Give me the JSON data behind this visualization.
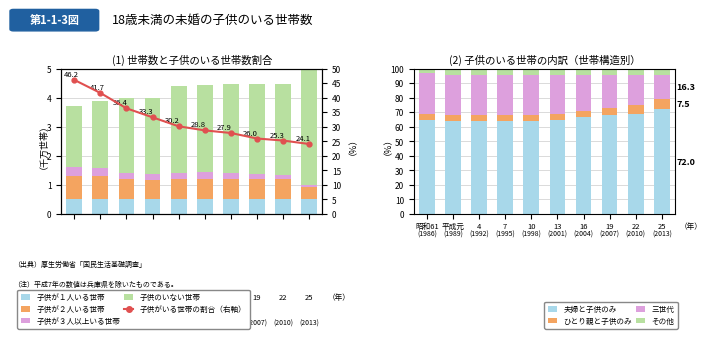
{
  "title_box": "第1-1-3図",
  "title_main": "18歳未満の未婚の子供のいる世帯数",
  "subtitle1": "(1) 世帯数と子供のいる世帯数割合",
  "subtitle2": "(2) 子供のいる世帯の内訳（世帯構造別）",
  "ylabel1": "（千万世帯）",
  "ylabel2": "（%）",
  "ylabel2b": "（%）",
  "xlabel_note": "（年）",
  "source": "（出典）厚生労働省「国民生活基礎調査」",
  "note": "（注）平成7年の数値は兵庫県を除いたものである。",
  "years_label": [
    "昭和61",
    "平成元",
    "4",
    "7",
    "10",
    "13",
    "16",
    "19",
    "22",
    "25"
  ],
  "years_sub": [
    "(1986)",
    "(1989)",
    "(1992)",
    "(1995)",
    "(1998)",
    "(2001)",
    "(2004)",
    "(2007)",
    "(2010)",
    "(2013)"
  ],
  "bar1_child1": [
    0.52,
    0.52,
    0.5,
    0.5,
    0.5,
    0.52,
    0.52,
    0.52,
    0.52,
    0.52
  ],
  "bar1_child2": [
    0.8,
    0.78,
    0.7,
    0.68,
    0.7,
    0.7,
    0.7,
    0.68,
    0.68,
    0.4
  ],
  "bar1_child3": [
    0.3,
    0.3,
    0.2,
    0.2,
    0.22,
    0.22,
    0.2,
    0.18,
    0.16,
    0.08
  ],
  "bar1_nochild": [
    2.1,
    2.3,
    2.6,
    2.62,
    3.0,
    3.0,
    3.05,
    3.1,
    3.12,
    4.0
  ],
  "line_values": [
    46.2,
    41.7,
    36.4,
    33.3,
    30.2,
    28.8,
    27.9,
    26.0,
    25.3,
    24.1
  ],
  "bar1_color_child1": "#a8d8ea",
  "bar1_color_child2": "#f4a460",
  "bar1_color_child3": "#dda0dd",
  "bar1_color_nochild": "#b8e0a0",
  "line_color": "#e05050",
  "bar2_couple": [
    65,
    64,
    64,
    64,
    64,
    65,
    67,
    68,
    69,
    72
  ],
  "bar2_single": [
    4,
    4,
    4,
    4,
    4,
    4,
    4,
    5,
    6,
    7.5
  ],
  "bar2_three": [
    28,
    28,
    28,
    28,
    28,
    27,
    25,
    23,
    21,
    16.3
  ],
  "bar2_other": [
    3,
    4,
    4,
    4,
    4,
    4,
    4,
    4,
    4,
    4.2
  ],
  "bar2_color_couple": "#a8d8ea",
  "bar2_color_single": "#f4a460",
  "bar2_color_three": "#dda0dd",
  "bar2_color_other": "#b8e0a0",
  "legend1": [
    "子供が１人いる世帯",
    "子供が２人いる世帯",
    "子供が３人以上いる世帯",
    "子供のいない世帯",
    "子供がいる世帯の割合（右軸）"
  ],
  "legend2": [
    "夫婦と子供のみ",
    "ひとり親と子供のみ",
    "三世代",
    "その他"
  ]
}
